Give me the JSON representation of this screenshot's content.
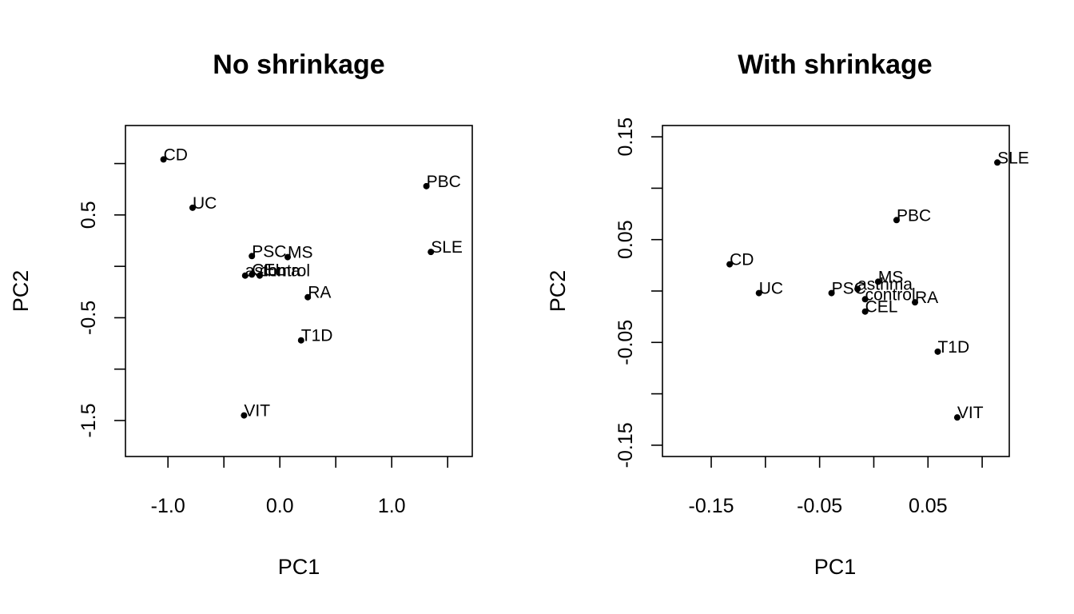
{
  "chart_data": [
    {
      "type": "scatter",
      "title": "No shrinkage",
      "xlabel": "PC1",
      "ylabel": "PC2",
      "xlim": [
        -1.38,
        1.72
      ],
      "ylim": [
        -1.85,
        1.37
      ],
      "xticks": [
        -1.0,
        -0.5,
        0.0,
        0.5,
        1.0,
        1.5
      ],
      "xtick_labels": [
        "-1.0",
        "",
        "0.0",
        "",
        "1.0",
        ""
      ],
      "yticks": [
        -1.5,
        -1.0,
        -0.5,
        0.0,
        0.5,
        1.0
      ],
      "ytick_labels": [
        "-1.5",
        "",
        "-0.5",
        "",
        "0.5",
        ""
      ],
      "points": [
        {
          "label": "CD",
          "x": -1.04,
          "y": 1.04
        },
        {
          "label": "UC",
          "x": -0.78,
          "y": 0.57
        },
        {
          "label": "PBC",
          "x": 1.31,
          "y": 0.78
        },
        {
          "label": "SLE",
          "x": 1.35,
          "y": 0.14
        },
        {
          "label": "PSC",
          "x": -0.25,
          "y": 0.1
        },
        {
          "label": "MS",
          "x": 0.07,
          "y": 0.09
        },
        {
          "label": "asthma",
          "x": -0.31,
          "y": -0.09
        },
        {
          "label": "CEL",
          "x": -0.25,
          "y": -0.08
        },
        {
          "label": "control",
          "x": -0.18,
          "y": -0.09
        },
        {
          "label": "RA",
          "x": 0.25,
          "y": -0.3
        },
        {
          "label": "T1D",
          "x": 0.19,
          "y": -0.72
        },
        {
          "label": "VIT",
          "x": -0.32,
          "y": -1.45
        }
      ]
    },
    {
      "type": "scatter",
      "title": "With shrinkage",
      "xlabel": "PC1",
      "ylabel": "PC2",
      "xlim": [
        -0.195,
        0.125
      ],
      "ylim": [
        -0.161,
        0.161
      ],
      "xticks": [
        -0.15,
        -0.1,
        -0.05,
        0.0,
        0.05,
        0.1
      ],
      "xtick_labels": [
        "-0.15",
        "",
        "-0.05",
        "",
        "0.05",
        ""
      ],
      "yticks": [
        -0.15,
        -0.1,
        -0.05,
        0.0,
        0.05,
        0.1,
        0.15
      ],
      "ytick_labels": [
        "-0.15",
        "",
        "-0.05",
        "",
        "0.05",
        "",
        "0.15"
      ],
      "points": [
        {
          "label": "SLE",
          "x": 0.114,
          "y": 0.125
        },
        {
          "label": "PBC",
          "x": 0.021,
          "y": 0.069
        },
        {
          "label": "CD",
          "x": -0.133,
          "y": 0.026
        },
        {
          "label": "UC",
          "x": -0.106,
          "y": -0.002
        },
        {
          "label": "MS",
          "x": 0.004,
          "y": 0.009
        },
        {
          "label": "PSC",
          "x": -0.039,
          "y": -0.002
        },
        {
          "label": "asthma",
          "x": -0.015,
          "y": 0.002
        },
        {
          "label": "control",
          "x": -0.008,
          "y": -0.008
        },
        {
          "label": "RA",
          "x": 0.038,
          "y": -0.011
        },
        {
          "label": "CEL",
          "x": -0.008,
          "y": -0.02
        },
        {
          "label": "T1D",
          "x": 0.059,
          "y": -0.059
        },
        {
          "label": "VIT",
          "x": 0.077,
          "y": -0.123
        }
      ]
    }
  ]
}
